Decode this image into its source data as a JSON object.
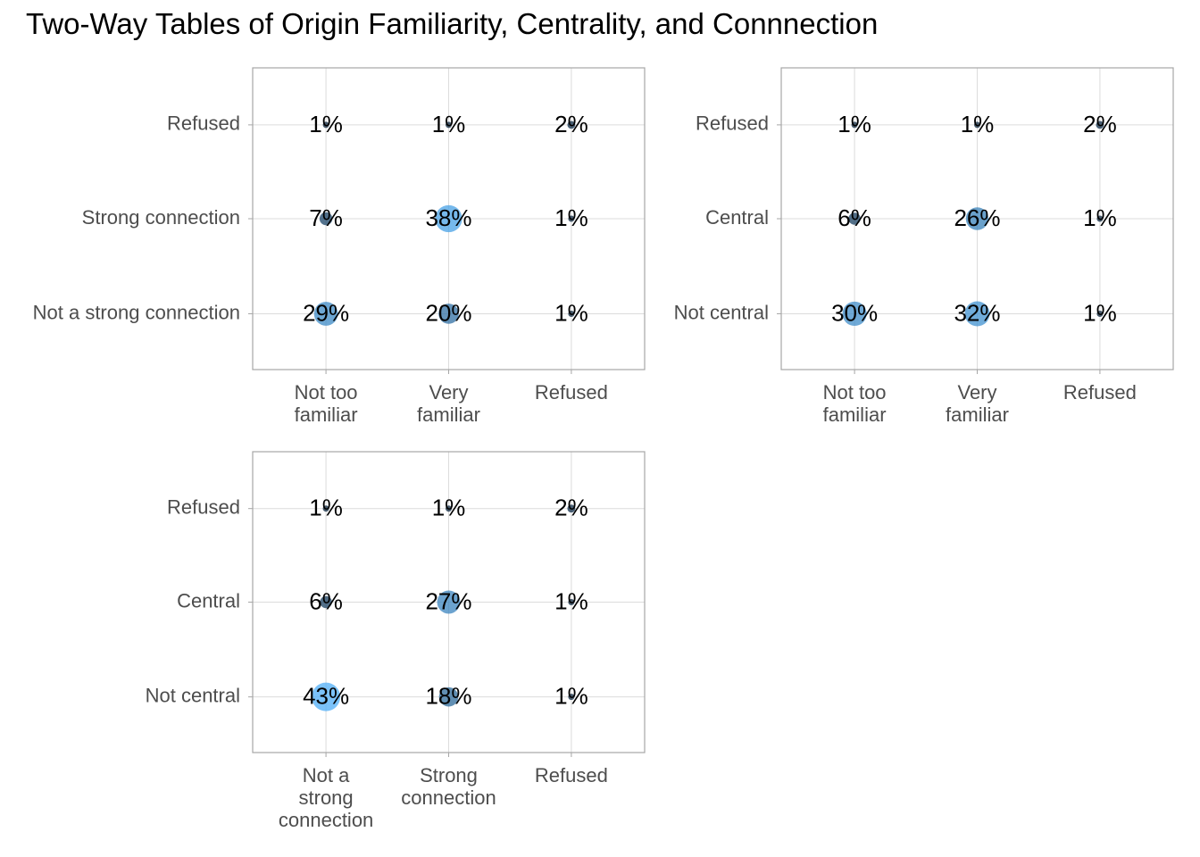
{
  "title": "Two-Way Tables of Origin Familiarity, Centrality, and Connnection",
  "chart_data": [
    {
      "type": "scatter",
      "panel": "top-left",
      "x_categories": [
        [
          "Not too",
          "familiar"
        ],
        [
          "Very",
          "familiar"
        ],
        [
          "Refused"
        ]
      ],
      "y_categories": [
        "Not a strong connection",
        "Strong connection",
        "Refused"
      ],
      "cells": [
        {
          "x": 0,
          "y": 0,
          "value": 29,
          "label": "29%"
        },
        {
          "x": 1,
          "y": 0,
          "value": 20,
          "label": "20%"
        },
        {
          "x": 2,
          "y": 0,
          "value": 1,
          "label": "1%"
        },
        {
          "x": 0,
          "y": 1,
          "value": 7,
          "label": "7%"
        },
        {
          "x": 1,
          "y": 1,
          "value": 38,
          "label": "38%"
        },
        {
          "x": 2,
          "y": 1,
          "value": 1,
          "label": "1%"
        },
        {
          "x": 0,
          "y": 2,
          "value": 1,
          "label": "1%"
        },
        {
          "x": 1,
          "y": 2,
          "value": 1,
          "label": "1%"
        },
        {
          "x": 2,
          "y": 2,
          "value": 2,
          "label": "2%"
        }
      ]
    },
    {
      "type": "scatter",
      "panel": "top-right",
      "x_categories": [
        [
          "Not too",
          "familiar"
        ],
        [
          "Very",
          "familiar"
        ],
        [
          "Refused"
        ]
      ],
      "y_categories": [
        "Not central",
        "Central",
        "Refused"
      ],
      "cells": [
        {
          "x": 0,
          "y": 0,
          "value": 30,
          "label": "30%"
        },
        {
          "x": 1,
          "y": 0,
          "value": 32,
          "label": "32%"
        },
        {
          "x": 2,
          "y": 0,
          "value": 1,
          "label": "1%"
        },
        {
          "x": 0,
          "y": 1,
          "value": 6,
          "label": "6%"
        },
        {
          "x": 1,
          "y": 1,
          "value": 26,
          "label": "26%"
        },
        {
          "x": 2,
          "y": 1,
          "value": 1,
          "label": "1%"
        },
        {
          "x": 0,
          "y": 2,
          "value": 1,
          "label": "1%"
        },
        {
          "x": 1,
          "y": 2,
          "value": 1,
          "label": "1%"
        },
        {
          "x": 2,
          "y": 2,
          "value": 2,
          "label": "2%"
        }
      ]
    },
    {
      "type": "scatter",
      "panel": "bottom-left",
      "x_categories": [
        [
          "Not a",
          "strong",
          "connection"
        ],
        [
          "Strong",
          "connection"
        ],
        [
          "Refused"
        ]
      ],
      "y_categories": [
        "Not central",
        "Central",
        "Refused"
      ],
      "cells": [
        {
          "x": 0,
          "y": 0,
          "value": 43,
          "label": "43%"
        },
        {
          "x": 1,
          "y": 0,
          "value": 18,
          "label": "18%"
        },
        {
          "x": 2,
          "y": 0,
          "value": 1,
          "label": "1%"
        },
        {
          "x": 0,
          "y": 1,
          "value": 6,
          "label": "6%"
        },
        {
          "x": 1,
          "y": 1,
          "value": 27,
          "label": "27%"
        },
        {
          "x": 2,
          "y": 1,
          "value": 1,
          "label": "1%"
        },
        {
          "x": 0,
          "y": 2,
          "value": 1,
          "label": "1%"
        },
        {
          "x": 1,
          "y": 2,
          "value": 1,
          "label": "1%"
        },
        {
          "x": 2,
          "y": 2,
          "value": 2,
          "label": "2%"
        }
      ]
    }
  ],
  "colors": {
    "point_low": "#132b43",
    "point_high": "#56b1f7",
    "grid": "#dcdcdc",
    "panel_border": "#a6a6a6",
    "axis_text": "#4d4d4d",
    "cell_text": "#000000"
  }
}
